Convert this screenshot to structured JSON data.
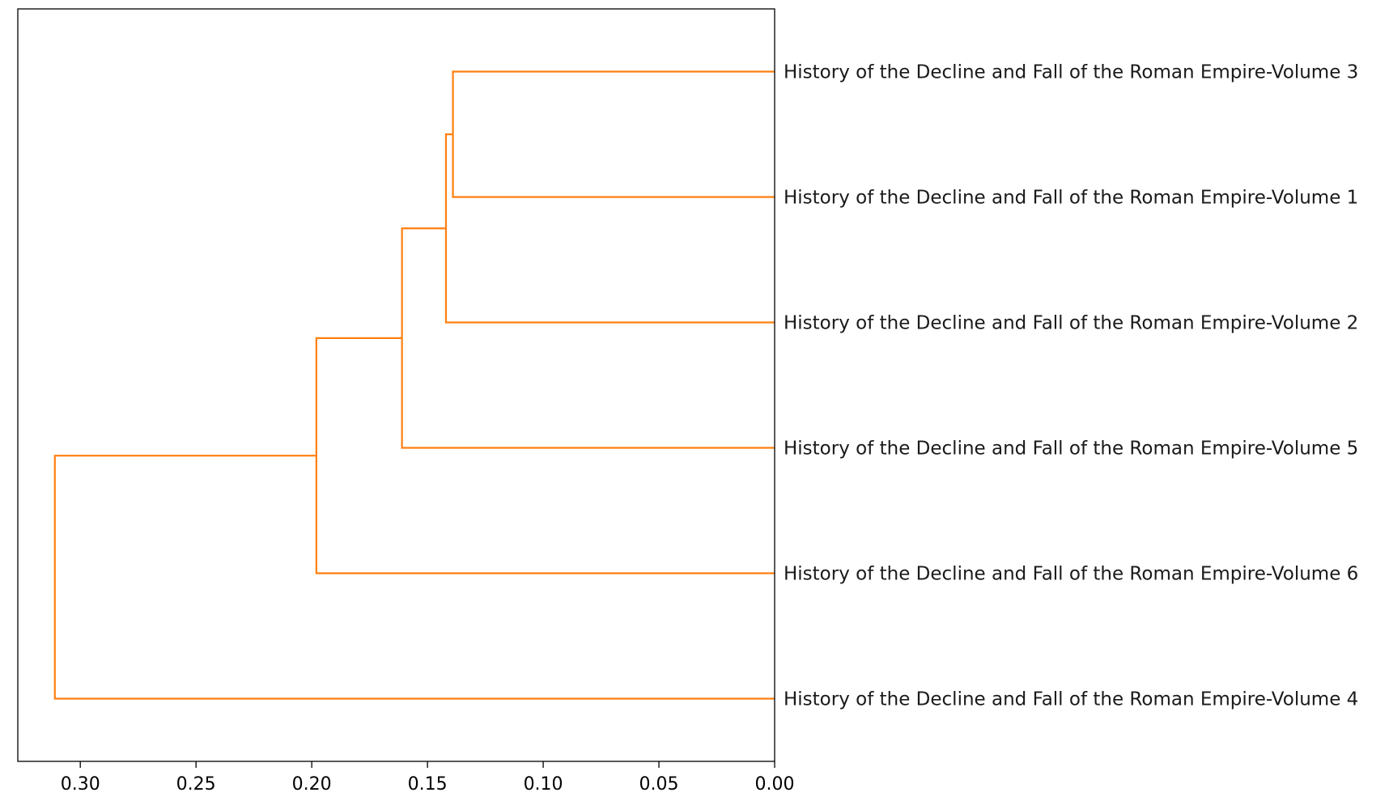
{
  "chart_data": {
    "type": "dendrogram",
    "orientation": "left",
    "link_color": "#ff7f0e",
    "xlim": [
      0.327,
      0.0
    ],
    "x_ticks": [
      0.3,
      0.25,
      0.2,
      0.15,
      0.1,
      0.05,
      0.0
    ],
    "x_tick_labels": [
      "0.30",
      "0.25",
      "0.20",
      "0.15",
      "0.10",
      "0.05",
      "0.00"
    ],
    "leaves": [
      "History of the Decline and Fall of the Roman Empire-Volume 3",
      "History of the Decline and Fall of the Roman Empire-Volume 1",
      "History of the Decline and Fall of the Roman Empire-Volume 2",
      "History of the Decline and Fall of the Roman Empire-Volume 5",
      "History of the Decline and Fall of the Roman Empire-Volume 6",
      "History of the Decline and Fall of the Roman Empire-Volume 4"
    ],
    "merges": [
      {
        "left": "leaf:0",
        "right": "leaf:1",
        "height": 0.139
      },
      {
        "left": "node:0",
        "right": "leaf:2",
        "height": 0.142
      },
      {
        "left": "node:1",
        "right": "leaf:3",
        "height": 0.161
      },
      {
        "left": "node:2",
        "right": "leaf:4",
        "height": 0.198
      },
      {
        "left": "node:3",
        "right": "leaf:5",
        "height": 0.311
      }
    ],
    "title": "",
    "xlabel": "",
    "ylabel": "",
    "grid": false
  }
}
